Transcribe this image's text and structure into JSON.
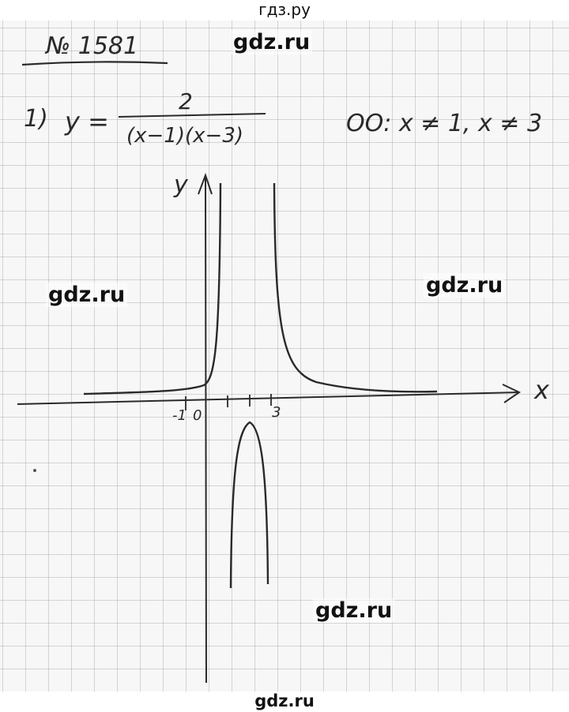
{
  "header": {
    "site_title": "гдз.ру"
  },
  "footer": {
    "site_link": "gdz.ru"
  },
  "watermarks": {
    "top": "gdz.ru",
    "left": "gdz.ru",
    "right": "gdz.ru",
    "bottom": "gdz.ru"
  },
  "problem": {
    "number_label": "№ 1581",
    "item_label": "1)",
    "function_lhs": "y =",
    "numerator": "2",
    "denominator": "(x−1)(x−3)",
    "domain_note": "ОО: x ≠ 1, x ≠ 3"
  },
  "graph": {
    "x_axis_label": "x",
    "y_axis_label": "y",
    "tick_labels": [
      "-1",
      "0",
      "3"
    ],
    "asymptotes": [
      1,
      3
    ],
    "vertex": {
      "x": 2,
      "y": -2
    }
  },
  "colors": {
    "ink": "#2a2a2a",
    "paper": "#f7f7f7",
    "grid": "#b4b4b4"
  }
}
